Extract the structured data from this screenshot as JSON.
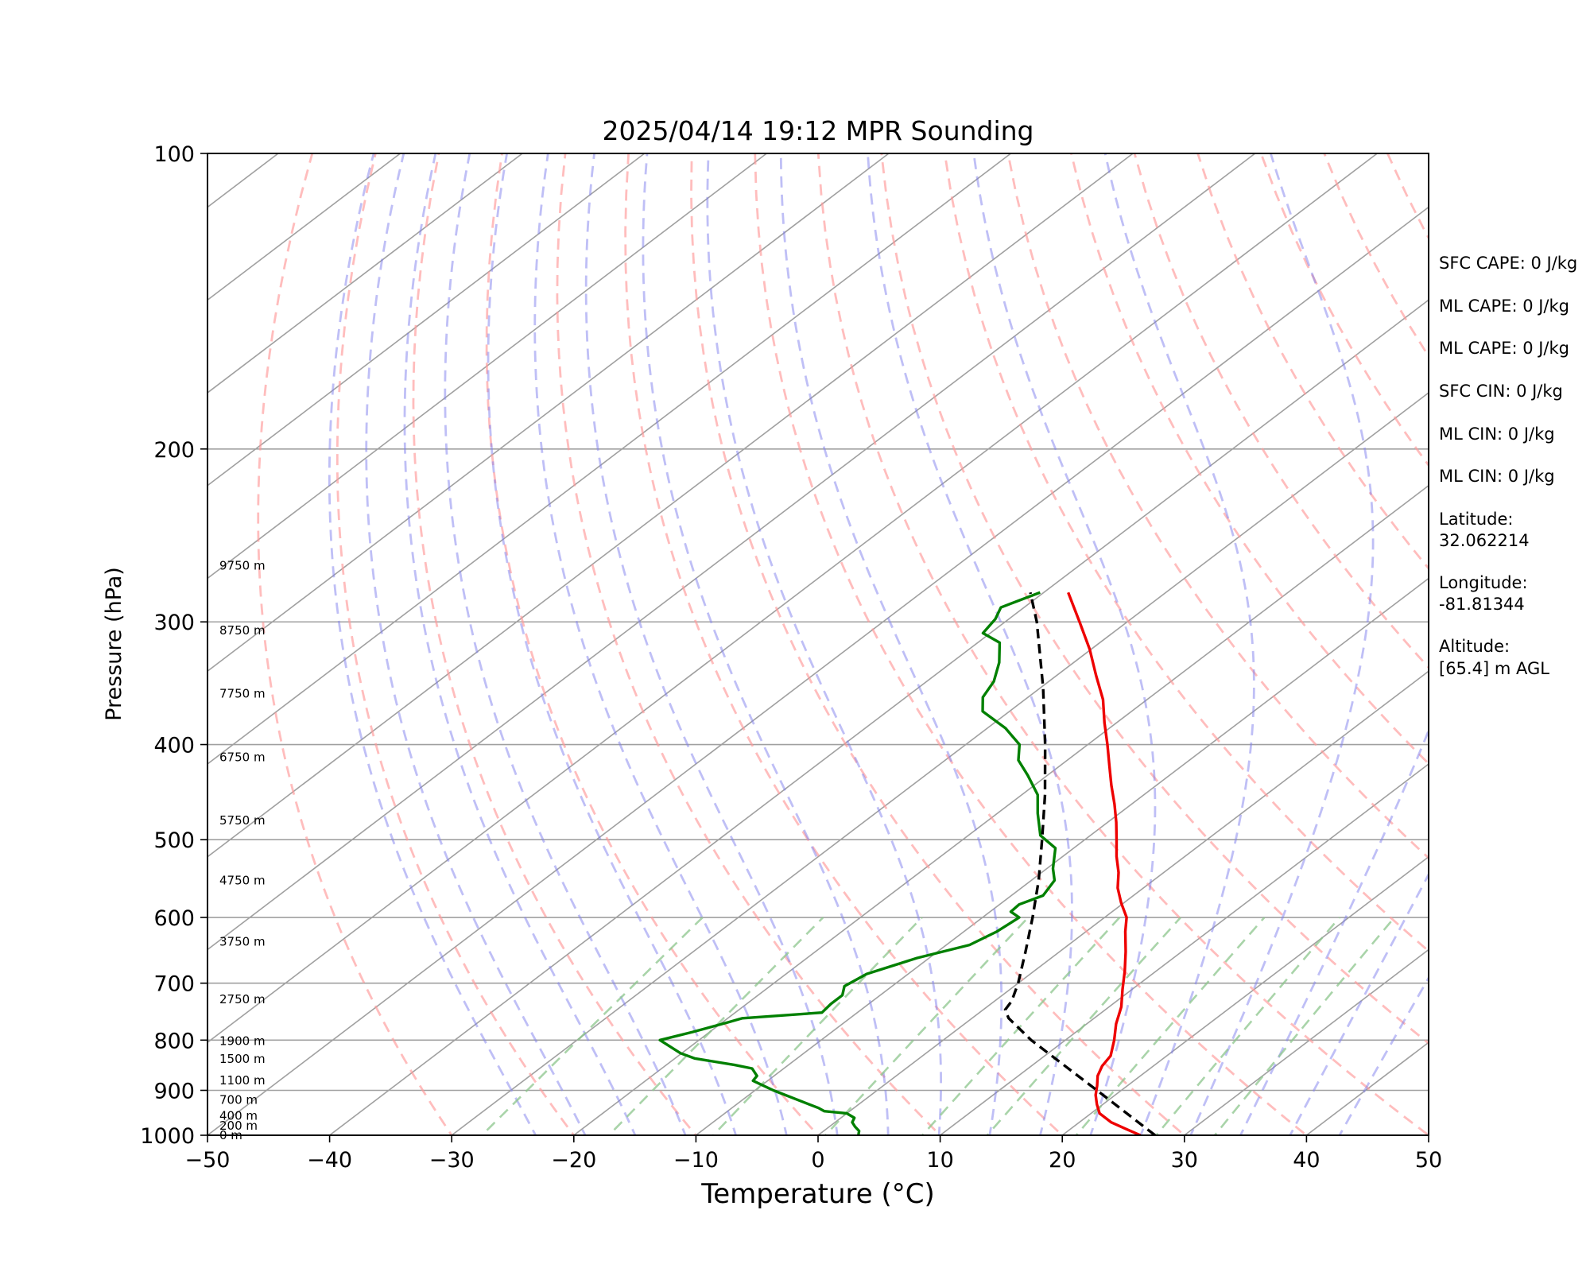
{
  "chart_data": {
    "type": "line",
    "title": "2025/04/14 19:12 MPR Sounding",
    "xlabel": "Temperature (°C)",
    "ylabel": "Pressure (hPa)",
    "xlim": [
      -50,
      50
    ],
    "ylim": [
      1000,
      100
    ],
    "y_scale": "log",
    "x_skew": "skew-T (isotherms slanted)",
    "grid": true,
    "x_ticks": [
      "−50",
      "−40",
      "−30",
      "−20",
      "−10",
      "0",
      "10",
      "20",
      "30",
      "40",
      "50"
    ],
    "y_ticks": [
      "100",
      "200",
      "300",
      "400",
      "500",
      "600",
      "700",
      "800",
      "900",
      "1000"
    ],
    "height_labels": [
      {
        "p": 1000,
        "text": "0 m"
      },
      {
        "p": 978,
        "text": "200 m"
      },
      {
        "p": 955,
        "text": "400 m"
      },
      {
        "p": 920,
        "text": "700 m"
      },
      {
        "p": 879,
        "text": "1100 m"
      },
      {
        "p": 836,
        "text": "1500 m"
      },
      {
        "p": 802,
        "text": "1900 m"
      },
      {
        "p": 727,
        "text": "2750 m"
      },
      {
        "p": 635,
        "text": "3750 m"
      },
      {
        "p": 550,
        "text": "4750 m"
      },
      {
        "p": 478,
        "text": "5750 m"
      },
      {
        "p": 412,
        "text": "6750 m"
      },
      {
        "p": 355,
        "text": "7750 m"
      },
      {
        "p": 306,
        "text": "8750 m"
      },
      {
        "p": 263,
        "text": "9750 m"
      }
    ],
    "series": [
      {
        "kind": "temperature",
        "color": "#ee0000",
        "points": [
          {
            "p": 1000,
            "t": 26.4
          },
          {
            "p": 985,
            "t": 24.5
          },
          {
            "p": 970,
            "t": 22.6
          },
          {
            "p": 950,
            "t": 20.7
          },
          {
            "p": 930,
            "t": 19.5
          },
          {
            "p": 910,
            "t": 18.4
          },
          {
            "p": 890,
            "t": 17.5
          },
          {
            "p": 870,
            "t": 16.5
          },
          {
            "p": 850,
            "t": 15.8
          },
          {
            "p": 830,
            "t": 15.4
          },
          {
            "p": 800,
            "t": 14.0
          },
          {
            "p": 770,
            "t": 12.4
          },
          {
            "p": 740,
            "t": 11.0
          },
          {
            "p": 710,
            "t": 9.2
          },
          {
            "p": 680,
            "t": 7.4
          },
          {
            "p": 650,
            "t": 5.4
          },
          {
            "p": 620,
            "t": 3.2
          },
          {
            "p": 600,
            "t": 1.8
          },
          {
            "p": 580,
            "t": -0.2
          },
          {
            "p": 560,
            "t": -2.1
          },
          {
            "p": 540,
            "t": -3.7
          },
          {
            "p": 520,
            "t": -5.6
          },
          {
            "p": 500,
            "t": -7.4
          },
          {
            "p": 480,
            "t": -9.3
          },
          {
            "p": 460,
            "t": -11.4
          },
          {
            "p": 440,
            "t": -13.7
          },
          {
            "p": 420,
            "t": -16.0
          },
          {
            "p": 400,
            "t": -18.4
          },
          {
            "p": 380,
            "t": -21.0
          },
          {
            "p": 360,
            "t": -23.6
          },
          {
            "p": 340,
            "t": -26.8
          },
          {
            "p": 320,
            "t": -30.1
          },
          {
            "p": 300,
            "t": -33.9
          },
          {
            "p": 280,
            "t": -38.0
          }
        ]
      },
      {
        "kind": "dewpoint",
        "color": "#008000",
        "points": [
          {
            "p": 1000,
            "t": 3.3
          },
          {
            "p": 990,
            "t": 2.9
          },
          {
            "p": 980,
            "t": 2.1
          },
          {
            "p": 970,
            "t": 1.4
          },
          {
            "p": 960,
            "t": 1.1
          },
          {
            "p": 950,
            "t": 0.0
          },
          {
            "p": 945,
            "t": -2.1
          },
          {
            "p": 938,
            "t": -2.9
          },
          {
            "p": 925,
            "t": -4.8
          },
          {
            "p": 900,
            "t": -8.5
          },
          {
            "p": 880,
            "t": -11.2
          },
          {
            "p": 870,
            "t": -11.4
          },
          {
            "p": 855,
            "t": -12.6
          },
          {
            "p": 848,
            "t": -14.4
          },
          {
            "p": 835,
            "t": -18.4
          },
          {
            "p": 825,
            "t": -20.1
          },
          {
            "p": 800,
            "t": -23.2
          },
          {
            "p": 785,
            "t": -21.4
          },
          {
            "p": 768,
            "t": -19.6
          },
          {
            "p": 760,
            "t": -18.8
          },
          {
            "p": 750,
            "t": -12.9
          },
          {
            "p": 735,
            "t": -13.1
          },
          {
            "p": 720,
            "t": -13.1
          },
          {
            "p": 705,
            "t": -13.9
          },
          {
            "p": 685,
            "t": -13.4
          },
          {
            "p": 660,
            "t": -11.0
          },
          {
            "p": 640,
            "t": -8.1
          },
          {
            "p": 620,
            "t": -7.3
          },
          {
            "p": 600,
            "t": -7.0
          },
          {
            "p": 592,
            "t": -8.3
          },
          {
            "p": 582,
            "t": -8.4
          },
          {
            "p": 570,
            "t": -7.4
          },
          {
            "p": 550,
            "t": -8.1
          },
          {
            "p": 535,
            "t": -9.5
          },
          {
            "p": 510,
            "t": -11.5
          },
          {
            "p": 495,
            "t": -14.1
          },
          {
            "p": 470,
            "t": -16.7
          },
          {
            "p": 450,
            "t": -18.7
          },
          {
            "p": 430,
            "t": -21.6
          },
          {
            "p": 415,
            "t": -24.0
          },
          {
            "p": 400,
            "t": -25.6
          },
          {
            "p": 385,
            "t": -28.5
          },
          {
            "p": 370,
            "t": -32.2
          },
          {
            "p": 358,
            "t": -33.7
          },
          {
            "p": 345,
            "t": -34.5
          },
          {
            "p": 330,
            "t": -36.1
          },
          {
            "p": 315,
            "t": -38.2
          },
          {
            "p": 308,
            "t": -40.6
          },
          {
            "p": 298,
            "t": -41.1
          },
          {
            "p": 290,
            "t": -41.9
          },
          {
            "p": 280,
            "t": -40.3
          }
        ]
      },
      {
        "kind": "parcel",
        "color": "#000000",
        "points": [
          {
            "p": 1000,
            "t": 27.6
          },
          {
            "p": 900,
            "t": 18.0
          },
          {
            "p": 800,
            "t": 7.2
          },
          {
            "p": 760,
            "t": 3.0
          },
          {
            "p": 745,
            "t": 1.8
          },
          {
            "p": 730,
            "t": 1.4
          },
          {
            "p": 700,
            "t": 0.0
          },
          {
            "p": 650,
            "t": -2.8
          },
          {
            "p": 600,
            "t": -5.9
          },
          {
            "p": 550,
            "t": -9.4
          },
          {
            "p": 500,
            "t": -13.5
          },
          {
            "p": 450,
            "t": -18.1
          },
          {
            "p": 400,
            "t": -23.5
          },
          {
            "p": 350,
            "t": -29.8
          },
          {
            "p": 300,
            "t": -37.4
          },
          {
            "p": 280,
            "t": -41.1
          }
        ]
      }
    ],
    "stats": {
      "sfc_cape": "SFC CAPE: 0 J/kg",
      "ml_cape_1": "ML CAPE: 0 J/kg",
      "ml_cape_2": "ML CAPE: 0 J/kg",
      "sfc_cin": "SFC CIN: 0 J/kg",
      "ml_cin_1": "ML CIN: 0 J/kg",
      "ml_cin_2": "ML CIN: 0 J/kg",
      "latitude_label": "Latitude:",
      "latitude_value": "32.062214",
      "longitude_label": "Longitude:",
      "longitude_value": "-81.81344",
      "altitude_label": "Altitude:",
      "altitude_value": "[65.4] m AGL"
    },
    "colors": {
      "isotherm": "#a0a0a0",
      "dry_adiabat": "#ff9999",
      "moist_adiabat": "#8080ee",
      "mixing_ratio": "#8cc58c"
    }
  }
}
